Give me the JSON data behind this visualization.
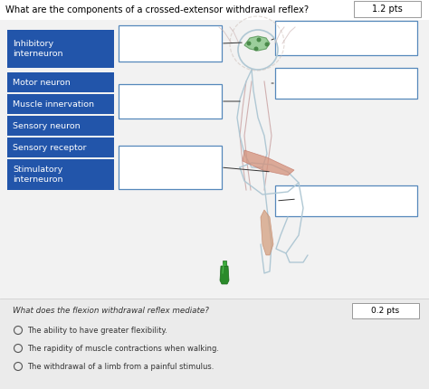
{
  "title": "What are the components of a crossed-extensor withdrawal reflex?",
  "pts_label": "1.2 pts",
  "bg_main": "#f0f0f0",
  "bg_content": "#f5f5f5",
  "bg_footer": "#e8e8e8",
  "blue_labels": [
    "Inhibitory\ninterneuron",
    "Motor neuron",
    "Muscle innervation",
    "Sensory neuron",
    "Sensory receptor",
    "Stimulatory\ninterneuron"
  ],
  "blue_box_color": "#2255aa",
  "blue_text_color": "#ffffff",
  "second_question": "What does the flexion withdrawal reflex mediate?",
  "pts_label2": "0.2 pts",
  "choices": [
    "The ability to have greater flexibility.",
    "The rapidity of muscle contractions when walking.",
    "The withdrawal of a limb from a painful stimulus."
  ]
}
